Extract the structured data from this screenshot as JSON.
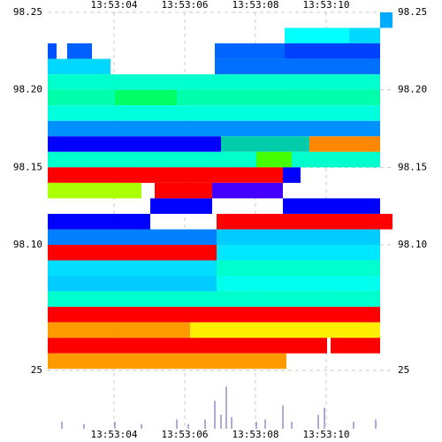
{
  "chart_data": {
    "type": "heatmap",
    "xlim": [
      2.125,
      11.875
    ],
    "xticks": [
      {
        "value": 4,
        "label": "13:53:04"
      },
      {
        "value": 6,
        "label": "13:53:06"
      },
      {
        "value": 8,
        "label": "13:53:08"
      },
      {
        "value": 10,
        "label": "13:53:10"
      }
    ],
    "ylim": [
      98.019,
      98.25
    ],
    "yticks": [
      {
        "value": 98.25,
        "label": "98.25"
      },
      {
        "value": 98.2,
        "label": "98.20"
      },
      {
        "value": 98.15,
        "label": "98.15"
      },
      {
        "value": 98.1,
        "label": "98.10"
      }
    ],
    "row_height": 0.01,
    "grid": true,
    "rows": [
      {
        "price": 98.25,
        "segments": [
          [
            11.525,
            11.875,
            "#00aaff"
          ]
        ]
      },
      {
        "price": 98.24,
        "segments": [
          [
            8.825,
            10.65,
            "#00ffff"
          ],
          [
            10.65,
            11.525,
            "#00d8ff"
          ]
        ]
      },
      {
        "price": 98.23,
        "segments": [
          [
            2.125,
            2.375,
            "#0050ff"
          ],
          [
            2.675,
            3.375,
            "#0060ff"
          ],
          [
            6.85,
            8.825,
            "#0064ff"
          ],
          [
            8.825,
            11.525,
            "#0040ff"
          ]
        ]
      },
      {
        "price": 98.22,
        "segments": [
          [
            2.125,
            3.9,
            "#00d8ff"
          ],
          [
            6.85,
            11.525,
            "#0070ff"
          ]
        ]
      },
      {
        "price": 98.21,
        "segments": [
          [
            2.125,
            11.525,
            "#00ffcc"
          ]
        ]
      },
      {
        "price": 98.2,
        "segments": [
          [
            2.125,
            4.025,
            "#00ffaa"
          ],
          [
            4.025,
            5.775,
            "#00ff66"
          ],
          [
            5.775,
            11.525,
            "#00ffaa"
          ]
        ]
      },
      {
        "price": 98.19,
        "segments": [
          [
            2.125,
            11.525,
            "#00ffdd"
          ]
        ]
      },
      {
        "price": 98.18,
        "segments": [
          [
            2.125,
            11.525,
            "#0090ff"
          ]
        ]
      },
      {
        "price": 98.17,
        "segments": [
          [
            2.125,
            7.025,
            "#0000ff"
          ],
          [
            7.025,
            9.525,
            "#00ccaa"
          ],
          [
            9.525,
            11.525,
            "#ff8800"
          ]
        ]
      },
      {
        "price": 98.16,
        "segments": [
          [
            2.125,
            8.025,
            "#00ffcc"
          ],
          [
            8.025,
            9.025,
            "#44ff00"
          ],
          [
            9.025,
            11.525,
            "#00ffcc"
          ]
        ]
      },
      {
        "price": 98.15,
        "segments": [
          [
            2.125,
            8.775,
            "#ff0000"
          ],
          [
            8.775,
            9.275,
            "#0000ff"
          ]
        ]
      },
      {
        "price": 98.14,
        "segments": [
          [
            2.125,
            4.775,
            "#aaff00"
          ],
          [
            5.15,
            6.775,
            "#ff0000"
          ],
          [
            6.775,
            8.775,
            "#4400ff"
          ]
        ]
      },
      {
        "price": 98.13,
        "segments": [
          [
            5.025,
            6.775,
            "#0000ff"
          ],
          [
            8.775,
            11.525,
            "#0000ff"
          ]
        ]
      },
      {
        "price": 98.12,
        "segments": [
          [
            2.125,
            5.025,
            "#0000ff"
          ],
          [
            6.9,
            11.875,
            "#ff0000"
          ]
        ]
      },
      {
        "price": 98.11,
        "segments": [
          [
            2.125,
            6.9,
            "#0080ff"
          ],
          [
            6.9,
            11.525,
            "#00ccff"
          ]
        ]
      },
      {
        "price": 98.1,
        "segments": [
          [
            2.125,
            6.9,
            "#ff0000"
          ],
          [
            6.9,
            11.525,
            "#00e8ff"
          ]
        ]
      },
      {
        "price": 98.09,
        "segments": [
          [
            2.125,
            6.9,
            "#00ddff"
          ],
          [
            6.9,
            11.525,
            "#00ffcc"
          ]
        ]
      },
      {
        "price": 98.08,
        "segments": [
          [
            2.125,
            6.9,
            "#00ccff"
          ],
          [
            6.9,
            11.525,
            "#00ffee"
          ]
        ]
      },
      {
        "price": 98.07,
        "segments": [
          [
            2.125,
            11.525,
            "#00ffcc"
          ]
        ]
      },
      {
        "price": 98.06,
        "segments": [
          [
            2.125,
            11.525,
            "#ff0000"
          ]
        ]
      },
      {
        "price": 98.05,
        "segments": [
          [
            2.125,
            6.15,
            "#ff9900"
          ],
          [
            6.15,
            11.525,
            "#ffee00"
          ]
        ]
      },
      {
        "price": 98.04,
        "segments": [
          [
            2.125,
            10.025,
            "#ff0000"
          ],
          [
            10.125,
            11.525,
            "#ff0000"
          ]
        ]
      },
      {
        "price": 98.03,
        "segments": [
          [
            2.125,
            8.875,
            "#ff9900"
          ]
        ]
      }
    ],
    "volume": {
      "color": "#9090d0",
      "ylim": [
        0,
        25
      ],
      "yticks": [
        25
      ],
      "x": [
        2.525,
        3.15,
        4.025,
        4.775,
        5.775,
        6.1,
        6.575,
        6.85,
        7.025,
        7.175,
        7.325,
        8.025,
        8.275,
        8.775,
        9.025,
        9.775,
        9.95,
        10.775,
        11.4
      ],
      "values": [
        3,
        2,
        3,
        2,
        4,
        2,
        4,
        12,
        6,
        18,
        5,
        3,
        4,
        10,
        3,
        6,
        9,
        3,
        4
      ]
    }
  }
}
